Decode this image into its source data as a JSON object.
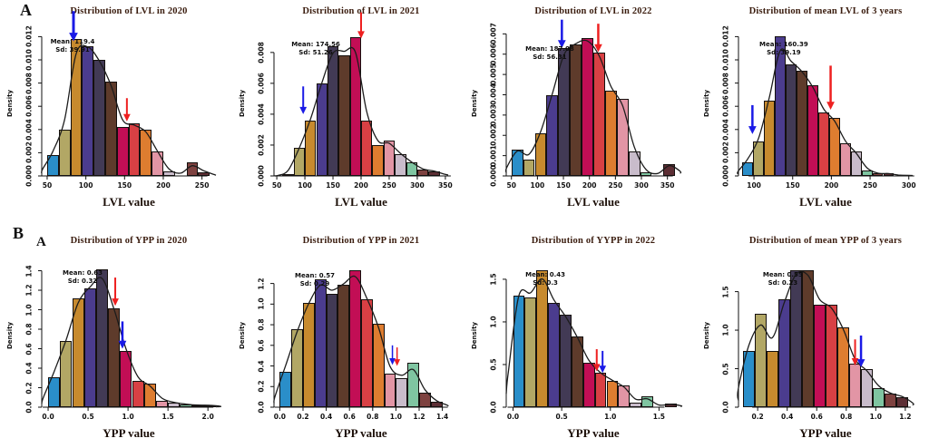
{
  "figure_background": "#ffffff",
  "panel_letters": [
    "A",
    "B",
    "A"
  ],
  "palette": [
    "#2a8ec9",
    "#b2a765",
    "#c78a2e",
    "#4b3c8e",
    "#423a55",
    "#5e3b2b",
    "#c20e55",
    "#d84044",
    "#de7d30",
    "#e295a5",
    "#c9bccb",
    "#7fc5a1",
    "#7e4240",
    "#5c2e34"
  ],
  "colors": {
    "curve": "#1c1c1c",
    "axis": "#111111",
    "arrow_blue": "#1a1ae6",
    "arrow_red": "#ee2020",
    "title": "#3a1c0e"
  },
  "chart_data": [
    {
      "type": "bar",
      "title": "Distribution of  LVL in 2020",
      "xlabel": "LVL value",
      "ylabel": "Density",
      "annotation": {
        "mean_label": "Mean: 119.4",
        "sd_label": "Sd: 39.91",
        "pos": {
          "left": 0.05,
          "top": 0.05
        }
      },
      "bins": {
        "start": 50,
        "width": 15
      },
      "values": [
        0.0018,
        0.004,
        0.0118,
        0.0112,
        0.01,
        0.0081,
        0.0042,
        0.0045,
        0.004,
        0.0021,
        0.0004,
        0,
        0.0012,
        0.0003
      ],
      "xlim": [
        43,
        268
      ],
      "ymax": 0.0125,
      "x_ticks": {
        "labels": [
          "50",
          "100",
          "150",
          "200",
          "250"
        ],
        "values": [
          50,
          100,
          150,
          200,
          250
        ]
      },
      "y_ticks": {
        "labels": [
          "0.000",
          "0.002",
          "0.004",
          "0.006",
          "0.008",
          "0.010",
          "0.012"
        ],
        "values": [
          0,
          0.002,
          0.004,
          0.006,
          0.008,
          0.01,
          0.012
        ]
      },
      "arrows": [
        {
          "color": "blue",
          "x": 84,
          "y_tip": 0.0116,
          "y_tail": 0.0142,
          "w": 3
        },
        {
          "color": "red",
          "x": 153,
          "y_tip": 0.0047,
          "y_tail": 0.0067,
          "w": 2
        }
      ]
    },
    {
      "type": "bar",
      "title": "Distribution of  LVL in 2021",
      "xlabel": "LVL value",
      "ylabel": "Density",
      "annotation": {
        "mean_label": "Mean: 174.56",
        "sd_label": "Sd: 51.26",
        "pos": {
          "left": 0.1,
          "top": 0.07
        }
      },
      "bins": {
        "start": 60,
        "width": 20
      },
      "values": [
        0.0001,
        0.0018,
        0.0036,
        0.006,
        0.0084,
        0.0078,
        0.009,
        0.0036,
        0.002,
        0.0023,
        0.0014,
        0.0009,
        0.0004,
        0.0003
      ],
      "xlim": [
        45,
        355
      ],
      "ymax": 0.0094,
      "x_ticks": {
        "labels": [
          "50",
          "100",
          "150",
          "200",
          "250",
          "300",
          "350"
        ],
        "values": [
          50,
          100,
          150,
          200,
          250,
          300,
          350
        ]
      },
      "y_ticks": {
        "labels": [
          "0.000",
          "0.002",
          "0.004",
          "0.006",
          "0.008"
        ],
        "values": [
          0,
          0.002,
          0.004,
          0.006,
          0.008
        ]
      },
      "arrows": [
        {
          "color": "blue",
          "x": 97,
          "y_tip": 0.004,
          "y_tail": 0.0058,
          "w": 2
        },
        {
          "color": "red",
          "x": 200,
          "y_tip": 0.0089,
          "y_tail": 0.0106,
          "w": 2
        }
      ]
    },
    {
      "type": "bar",
      "title": "Distribution of  LVL in 2022",
      "xlabel": "LVL value",
      "ylabel": "Density",
      "annotation": {
        "mean_label": "Mean: 187.08",
        "sd_label": "Sd: 56.31",
        "pos": {
          "left": 0.11,
          "top": 0.1
        }
      },
      "bins": {
        "start": 50,
        "width": 22.5
      },
      "values": [
        0.0013,
        0.0008,
        0.0021,
        0.004,
        0.0063,
        0.0065,
        0.0068,
        0.0061,
        0.0042,
        0.0038,
        0.0012,
        0.0002,
        0,
        0.0006
      ],
      "xlim": [
        40,
        375
      ],
      "ymax": 0.00715,
      "x_ticks": {
        "labels": [
          "50",
          "100",
          "150",
          "200",
          "250",
          "300",
          "350"
        ],
        "values": [
          50,
          100,
          150,
          200,
          250,
          300,
          350
        ]
      },
      "y_ticks": {
        "labels": [
          "0.000",
          "0.001",
          "0.002",
          "0.003",
          "0.004",
          "0.005",
          "0.006",
          "0.007"
        ],
        "values": [
          0,
          0.001,
          0.002,
          0.003,
          0.004,
          0.005,
          0.006,
          0.007
        ]
      },
      "arrows": [
        {
          "color": "blue",
          "x": 147,
          "y_tip": 0.0063,
          "y_tail": 0.0077,
          "w": 2.5
        },
        {
          "color": "red",
          "x": 217,
          "y_tip": 0.0061,
          "y_tail": 0.0075,
          "w": 2.5
        }
      ]
    },
    {
      "type": "bar",
      "title": "Distribution of  mean LVL of 3 years",
      "xlabel": "LVL value",
      "ylabel": "Density",
      "annotation": {
        "mean_label": "Mean: 160.39",
        "sd_label": "Sd: 39.19",
        "pos": {
          "left": 0.12,
          "top": 0.07
        }
      },
      "bins": {
        "start": 85,
        "width": 14
      },
      "values": [
        0.0012,
        0.003,
        0.0065,
        0.012,
        0.0096,
        0.0091,
        0.0078,
        0.0055,
        0.005,
        0.0028,
        0.0021,
        0.0005,
        0.0002,
        0.0002
      ],
      "xlim": [
        80,
        305
      ],
      "ymax": 0.0125,
      "x_ticks": {
        "labels": [
          "100",
          "150",
          "200",
          "250",
          "300"
        ],
        "values": [
          100,
          150,
          200,
          250,
          300
        ]
      },
      "y_ticks": {
        "labels": [
          "0.000",
          "0.002",
          "0.004",
          "0.006",
          "0.008",
          "0.010",
          "0.012"
        ],
        "values": [
          0,
          0.002,
          0.004,
          0.006,
          0.008,
          0.01,
          0.012
        ]
      },
      "arrows": [
        {
          "color": "blue",
          "x": 98,
          "y_tip": 0.0036,
          "y_tail": 0.0061,
          "w": 2.5
        },
        {
          "color": "red",
          "x": 199,
          "y_tip": 0.0057,
          "y_tail": 0.0095,
          "w": 2.5
        }
      ]
    },
    {
      "type": "bar",
      "title": "Distribution of YPP in 2020",
      "xlabel": "YPP value",
      "ylabel": "Density",
      "annotation": {
        "mean_label": "Mean: 0.63",
        "sd_label": "Sd: 0.32",
        "pos": {
          "left": 0.12,
          "top": 0.04
        }
      },
      "bins": {
        "start": 0,
        "width": 0.15
      },
      "values": [
        0.31,
        0.68,
        1.12,
        1.22,
        1.41,
        1.01,
        0.58,
        0.27,
        0.24,
        0.07,
        0.05,
        0.03,
        0.02,
        0.02
      ],
      "xlim": [
        -0.08,
        2.1
      ],
      "ymax": 1.47,
      "x_ticks": {
        "labels": [
          "0.0",
          "0.5",
          "1.0",
          "1.5",
          "2.0"
        ],
        "values": [
          0,
          0.5,
          1.0,
          1.5,
          2.0
        ]
      },
      "y_ticks": {
        "labels": [
          "0.0",
          "0.2",
          "0.4",
          "0.6",
          "0.8",
          "1.0",
          "1.2",
          "1.4"
        ],
        "values": [
          0,
          0.2,
          0.4,
          0.6,
          0.8,
          1.0,
          1.2,
          1.4
        ]
      },
      "arrows": [
        {
          "color": "red",
          "x": 0.84,
          "y_tip": 1.04,
          "y_tail": 1.33,
          "w": 2
        },
        {
          "color": "blue",
          "x": 0.93,
          "y_tip": 0.6,
          "y_tail": 0.88,
          "w": 2.5
        }
      ]
    },
    {
      "type": "bar",
      "title": "Distribution of YPP in 2021",
      "xlabel": "YPP value",
      "ylabel": "Density",
      "annotation": {
        "mean_label": "Mean: 0.57",
        "sd_label": "Sd: 0.29",
        "pos": {
          "left": 0.12,
          "top": 0.06
        }
      },
      "bins": {
        "start": 0,
        "width": 0.1
      },
      "values": [
        0.34,
        0.76,
        1.01,
        1.24,
        1.1,
        1.19,
        1.33,
        1.05,
        0.81,
        0.33,
        0.28,
        0.43,
        0.14,
        0.05
      ],
      "xlim": [
        -0.05,
        1.45
      ],
      "ymax": 1.39,
      "x_ticks": {
        "labels": [
          "0.0",
          "0.2",
          "0.4",
          "0.6",
          "0.8",
          "1.0",
          "1.2",
          "1.4"
        ],
        "values": [
          0,
          0.2,
          0.4,
          0.6,
          0.8,
          1.0,
          1.2,
          1.4
        ]
      },
      "y_ticks": {
        "labels": [
          "0.0",
          "0.2",
          "0.4",
          "0.6",
          "0.8",
          "1.0",
          "1.2"
        ],
        "values": [
          0,
          0.2,
          0.4,
          0.6,
          0.8,
          1.0,
          1.2
        ]
      },
      "arrows": [
        {
          "color": "blue",
          "x": 0.97,
          "y_tip": 0.41,
          "y_tail": 0.6,
          "w": 1.5
        },
        {
          "color": "red",
          "x": 1.01,
          "y_tip": 0.4,
          "y_tail": 0.58,
          "w": 1.5
        }
      ]
    },
    {
      "type": "bar",
      "title": "Distribution of YYPP in 2022",
      "xlabel": "YPP value",
      "ylabel": "Density",
      "annotation": {
        "mean_label": "Mean: 0.43",
        "sd_label": "Sd: 0.3",
        "pos": {
          "left": 0.11,
          "top": 0.05
        }
      },
      "bins": {
        "start": 0,
        "width": 0.12
      },
      "values": [
        1.31,
        1.29,
        1.61,
        1.22,
        1.08,
        0.83,
        0.52,
        0.4,
        0.31,
        0.26,
        0.05,
        0.13,
        0,
        0.04
      ],
      "xlim": [
        -0.07,
        1.72
      ],
      "ymax": 1.68,
      "x_ticks": {
        "labels": [
          "0.0",
          "0.5",
          "1.0",
          "1.5"
        ],
        "values": [
          0,
          0.5,
          1.0,
          1.5
        ]
      },
      "y_ticks": {
        "labels": [
          "0.0",
          "0.5",
          "1.0",
          "1.5"
        ],
        "values": [
          0,
          0.5,
          1.0,
          1.5
        ]
      },
      "arrows": [
        {
          "color": "red",
          "x": 0.86,
          "y_tip": 0.42,
          "y_tail": 0.68,
          "w": 2
        },
        {
          "color": "blue",
          "x": 0.92,
          "y_tip": 0.4,
          "y_tail": 0.66,
          "w": 2
        }
      ]
    },
    {
      "type": "bar",
      "title": "Distribution of mean YPP of 3 years",
      "xlabel": "YPP value",
      "ylabel": "Density",
      "annotation": {
        "mean_label": "Mean: 0.55",
        "sd_label": "Sd: 0.23",
        "pos": {
          "left": 0.14,
          "top": 0.05
        }
      },
      "bins": {
        "start": 0.1,
        "width": 0.08
      },
      "values": [
        0.73,
        1.21,
        0.73,
        1.4,
        1.78,
        1.78,
        1.33,
        1.33,
        1.04,
        0.56,
        0.5,
        0.25,
        0.18,
        0.13
      ],
      "xlim": [
        0.07,
        1.25
      ],
      "ymax": 1.86,
      "x_ticks": {
        "labels": [
          "0.2",
          "0.4",
          "0.6",
          "0.8",
          "1.0",
          "1.2"
        ],
        "values": [
          0.2,
          0.4,
          0.6,
          0.8,
          1.0,
          1.2
        ]
      },
      "y_ticks": {
        "labels": [
          "0.0",
          "0.5",
          "1.0",
          "1.5"
        ],
        "values": [
          0,
          0.5,
          1.0,
          1.5
        ]
      },
      "arrows": [
        {
          "color": "red",
          "x": 0.86,
          "y_tip": 0.54,
          "y_tail": 0.88,
          "w": 2
        },
        {
          "color": "blue",
          "x": 0.9,
          "y_tip": 0.52,
          "y_tail": 0.93,
          "w": 2.5
        }
      ]
    }
  ]
}
